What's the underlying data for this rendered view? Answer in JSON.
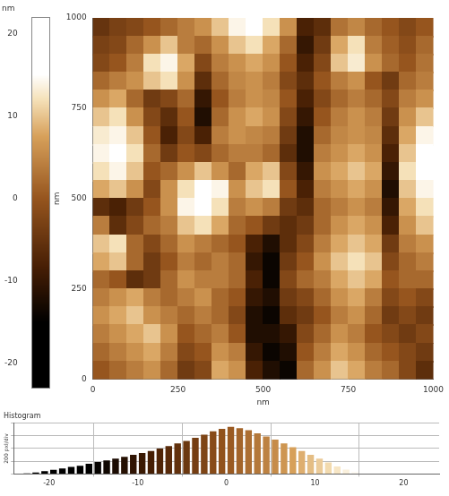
{
  "chart_data": [
    {
      "type": "heatmap",
      "x_label": "nm",
      "y_label": "nm",
      "xlim": [
        0,
        1000
      ],
      "ylim": [
        0,
        1000
      ],
      "xticks": [
        0,
        250,
        500,
        750,
        1000
      ],
      "yticks": [
        0,
        250,
        500,
        750,
        1000
      ],
      "grid": false,
      "x": [
        25,
        75,
        125,
        175,
        225,
        275,
        325,
        375,
        425,
        475,
        525,
        575,
        625,
        675,
        725,
        775,
        825,
        875,
        925,
        975
      ],
      "y": [
        975,
        925,
        875,
        825,
        775,
        725,
        675,
        625,
        575,
        525,
        475,
        425,
        375,
        325,
        275,
        225,
        175,
        125,
        75,
        25
      ],
      "cells": [
        [
          -5,
          -3,
          -2,
          0,
          2,
          4,
          6,
          10,
          14,
          15,
          12,
          6,
          -8,
          -6,
          3,
          5,
          2,
          0,
          -2,
          0
        ],
        [
          -3,
          -2,
          2,
          6,
          10,
          4,
          2,
          6,
          10,
          12,
          8,
          2,
          -10,
          -4,
          8,
          12,
          4,
          1,
          -1,
          2
        ],
        [
          -2,
          0,
          4,
          12,
          14,
          8,
          -2,
          4,
          6,
          8,
          6,
          0,
          -8,
          -2,
          10,
          13,
          6,
          2,
          0,
          3
        ],
        [
          2,
          4,
          6,
          10,
          12,
          6,
          -6,
          2,
          5,
          6,
          4,
          -2,
          -6,
          0,
          4,
          6,
          0,
          -4,
          2,
          4
        ],
        [
          6,
          8,
          2,
          -4,
          -2,
          2,
          -10,
          0,
          4,
          6,
          5,
          0,
          -8,
          -2,
          2,
          4,
          2,
          -2,
          4,
          6
        ],
        [
          10,
          12,
          6,
          -2,
          -6,
          0,
          -12,
          2,
          6,
          8,
          6,
          -2,
          -10,
          0,
          4,
          6,
          4,
          -4,
          6,
          10
        ],
        [
          13,
          14,
          10,
          0,
          -8,
          -2,
          -8,
          4,
          6,
          5,
          4,
          -4,
          -12,
          2,
          5,
          6,
          5,
          -6,
          8,
          14
        ],
        [
          14,
          15,
          12,
          2,
          -4,
          0,
          -2,
          2,
          4,
          4,
          2,
          -6,
          -12,
          4,
          6,
          8,
          6,
          -8,
          10,
          15
        ],
        [
          12,
          14,
          10,
          0,
          2,
          6,
          10,
          6,
          2,
          8,
          10,
          -2,
          -10,
          6,
          8,
          10,
          8,
          -10,
          12,
          15
        ],
        [
          8,
          10,
          6,
          -2,
          6,
          12,
          15,
          14,
          6,
          10,
          12,
          0,
          -8,
          4,
          6,
          8,
          6,
          -12,
          10,
          14
        ],
        [
          -6,
          -8,
          -4,
          0,
          6,
          14,
          15,
          12,
          4,
          6,
          4,
          -4,
          -6,
          2,
          4,
          6,
          4,
          -10,
          8,
          12
        ],
        [
          4,
          -6,
          -2,
          2,
          4,
          10,
          12,
          8,
          2,
          0,
          -4,
          -6,
          -4,
          2,
          6,
          8,
          6,
          -8,
          6,
          10
        ],
        [
          10,
          12,
          2,
          -2,
          2,
          6,
          4,
          2,
          0,
          -8,
          -12,
          -6,
          -2,
          4,
          8,
          10,
          8,
          -4,
          4,
          6
        ],
        [
          8,
          10,
          2,
          -4,
          0,
          4,
          2,
          4,
          2,
          -10,
          -14,
          -4,
          0,
          6,
          10,
          12,
          10,
          -2,
          2,
          4
        ],
        [
          2,
          0,
          -6,
          -4,
          2,
          6,
          4,
          4,
          2,
          -8,
          -14,
          -2,
          2,
          4,
          8,
          10,
          8,
          0,
          2,
          2
        ],
        [
          4,
          6,
          8,
          4,
          2,
          4,
          6,
          2,
          0,
          -10,
          -12,
          -4,
          -2,
          2,
          6,
          8,
          4,
          -2,
          0,
          -2
        ],
        [
          6,
          8,
          10,
          6,
          4,
          2,
          4,
          2,
          -2,
          -12,
          -14,
          -6,
          -4,
          0,
          4,
          6,
          2,
          -4,
          -2,
          -4
        ],
        [
          4,
          6,
          8,
          10,
          6,
          0,
          2,
          4,
          0,
          -12,
          -12,
          -10,
          -2,
          2,
          6,
          4,
          0,
          -2,
          -4,
          -2
        ],
        [
          2,
          4,
          6,
          8,
          4,
          -2,
          0,
          6,
          4,
          -10,
          -14,
          -12,
          0,
          4,
          8,
          6,
          2,
          0,
          -2,
          -4
        ],
        [
          0,
          2,
          4,
          6,
          2,
          -4,
          -2,
          8,
          6,
          -8,
          -12,
          -14,
          2,
          6,
          10,
          8,
          4,
          2,
          -2,
          -6
        ]
      ],
      "colorbar": {
        "label": "nm",
        "lim": [
          -23,
          22
        ],
        "ticks": [
          -20,
          -10,
          0,
          10,
          20
        ],
        "clim": [
          -15,
          15
        ]
      }
    },
    {
      "type": "histogram",
      "title": "Histogram",
      "y_label": "200 pxl/div",
      "bins": [
        -23,
        -22,
        -21,
        -20,
        -19,
        -18,
        -17,
        -16,
        -15,
        -14,
        -13,
        -12,
        -11,
        -10,
        -9,
        -8,
        -7,
        -6,
        -5,
        -4,
        -3,
        -2,
        -1,
        0,
        1,
        2,
        3,
        4,
        5,
        6,
        7,
        8,
        9,
        10,
        11,
        12,
        13,
        14,
        15,
        16
      ],
      "counts": [
        10,
        25,
        45,
        65,
        85,
        110,
        130,
        160,
        190,
        215,
        240,
        270,
        300,
        330,
        360,
        400,
        440,
        480,
        520,
        570,
        620,
        670,
        710,
        740,
        720,
        690,
        640,
        590,
        540,
        480,
        420,
        360,
        300,
        240,
        180,
        120,
        70,
        35,
        10
      ],
      "xlim": [
        -24,
        24
      ],
      "xticks": [
        -20,
        -10,
        0,
        10,
        20
      ],
      "ylim": [
        0,
        800
      ],
      "yticks": [
        0,
        200,
        400,
        600,
        800
      ],
      "tick_labels": "x",
      "grid": true
    }
  ]
}
